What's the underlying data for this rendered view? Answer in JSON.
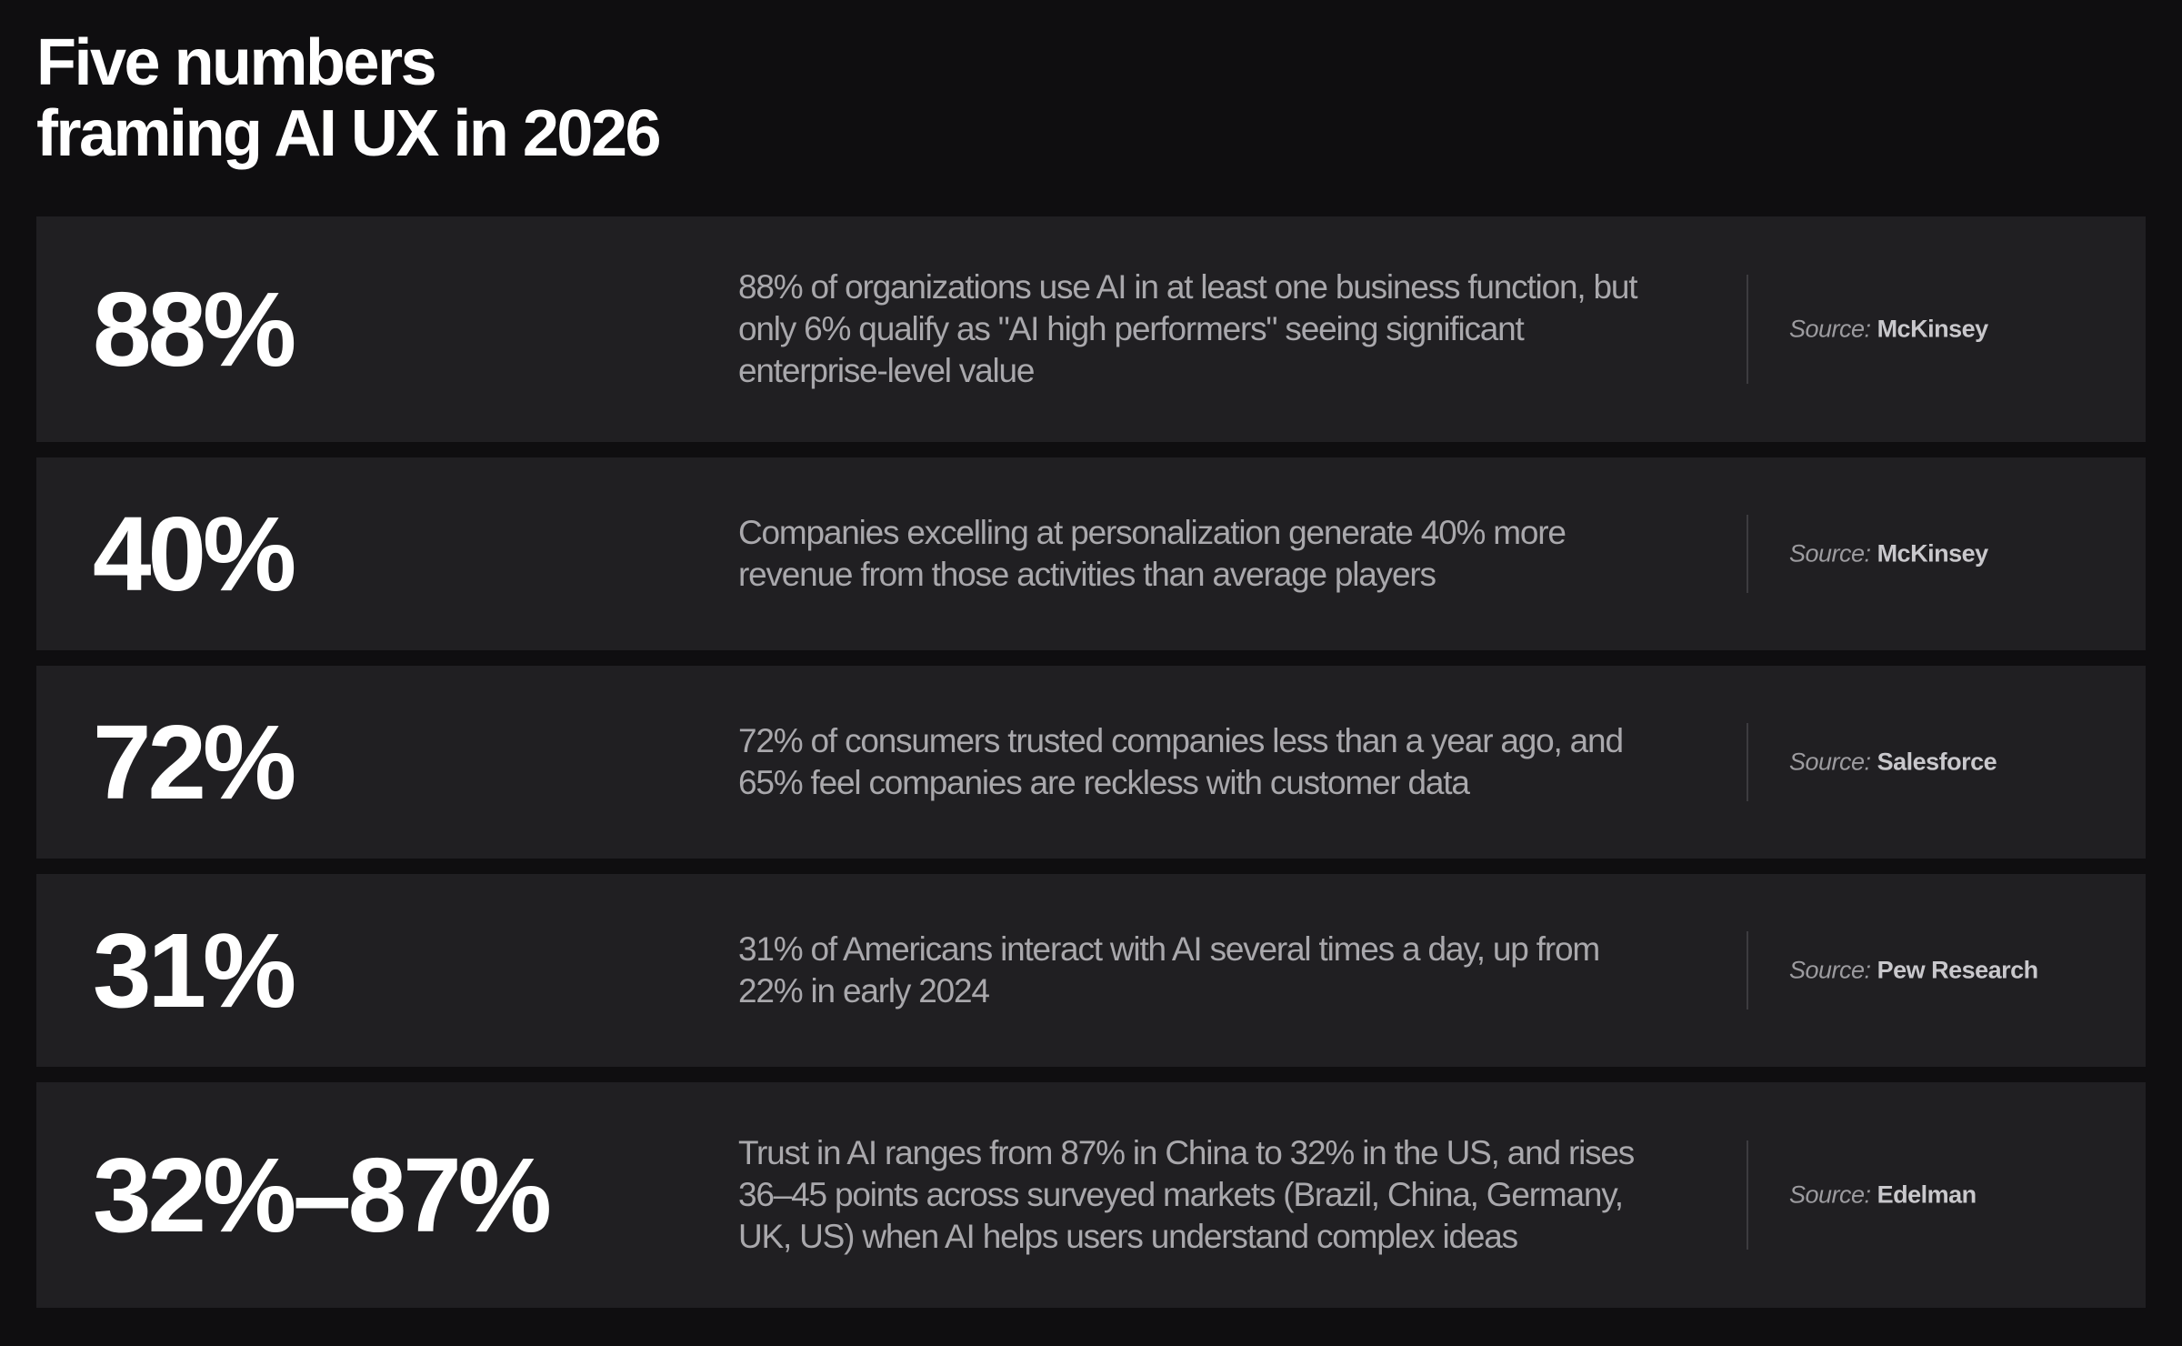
{
  "title": {
    "line1": "Five numbers",
    "line2": "framing AI UX in 2026"
  },
  "source_prefix": "Source: ",
  "stats": [
    {
      "value": "88%",
      "description": "88% of organizations use AI in at least one business function, but only 6% qualify as \"AI high performers\" seeing significant enterprise-level value",
      "source": "McKinsey"
    },
    {
      "value": "40%",
      "description": "Companies excelling at personalization generate 40% more revenue from those activities than average players",
      "source": "McKinsey"
    },
    {
      "value": "72%",
      "description": "72% of consumers trusted companies less than a year ago, and 65% feel companies are reckless with customer data",
      "source": "Salesforce"
    },
    {
      "value": "31%",
      "description": "31% of Americans interact with AI several times a day, up from 22% in early 2024",
      "source": "Pew Research"
    },
    {
      "value": "32%–87%",
      "description": "Trust in AI ranges from 87% in China to 32% in the US, and rises 36–45 points across surveyed markets (Brazil, China, Germany, UK, US) when AI helps users understand complex ideas",
      "source": "Edelman"
    }
  ],
  "colors": {
    "background": "#0f0e10",
    "card": "#201f22",
    "stat_text": "#ffffff",
    "description_text": "#a9a8ac",
    "divider": "#3c3b3f"
  }
}
